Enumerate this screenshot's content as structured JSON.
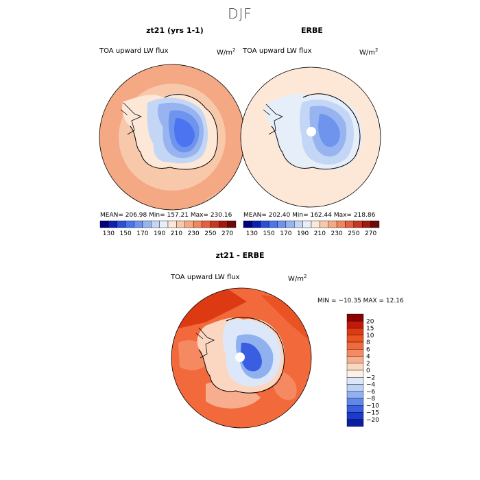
{
  "title": "DJF",
  "panels": [
    {
      "title": "zt21 (yrs 1-1)",
      "varname": "TOA upward LW flux",
      "units": "W/m",
      "units_exp": "2",
      "stats": "MEAN= 206.98   Min= 157.21   Max= 230.16"
    },
    {
      "title": "ERBE",
      "varname": "TOA upward LW flux",
      "units": "W/m",
      "units_exp": "2",
      "stats": "MEAN= 202.40   Min= 162.44   Max= 218.86"
    }
  ],
  "diff": {
    "title": "zt21 - ERBE",
    "varname": "TOA upward LW flux",
    "units": "W/m",
    "units_exp": "2",
    "stats": "MIN = −10.35  MAX =   12.16"
  },
  "chart_data": [
    {
      "type": "heatmap",
      "title": "zt21 (yrs 1-1)",
      "subtitle": "TOA upward LW flux",
      "units": "W/m^2",
      "mean": 206.98,
      "min": 157.21,
      "max": 230.16,
      "colorbar_ticks": [
        "130",
        "150",
        "170",
        "190",
        "210",
        "230",
        "250",
        "270"
      ],
      "colors": [
        "#00007a",
        "#0b1fb0",
        "#2b50d8",
        "#4c74f0",
        "#6f94ee",
        "#97b4f0",
        "#c4d6f5",
        "#e6eef9",
        "#fde8d8",
        "#f7c8aa",
        "#f5a884",
        "#f08660",
        "#e4603e",
        "#c8381f",
        "#a01b0d",
        "#6e0a05"
      ]
    },
    {
      "type": "heatmap",
      "title": "ERBE",
      "subtitle": "TOA upward LW flux",
      "units": "W/m^2",
      "mean": 202.4,
      "min": 162.44,
      "max": 218.86,
      "colorbar_ticks": [
        "130",
        "150",
        "170",
        "190",
        "210",
        "230",
        "250",
        "270"
      ]
    },
    {
      "type": "heatmap",
      "title": "zt21 - ERBE",
      "subtitle": "TOA upward LW flux",
      "units": "W/m^2",
      "min": -10.35,
      "max": 12.16,
      "levels": [
        "20",
        "15",
        "10",
        "8",
        "6",
        "4",
        "2",
        "0",
        "−2",
        "−4",
        "−6",
        "−8",
        "−10",
        "−15",
        "−20"
      ],
      "colors": [
        "#8b0000",
        "#c21a08",
        "#dd3a14",
        "#ea5324",
        "#f26a3c",
        "#f58a62",
        "#f8ae8e",
        "#fbd7c2",
        "#fdf1e6",
        "#dce8fa",
        "#bcd1f5",
        "#8fb1f0",
        "#6286ea",
        "#3a5ee0",
        "#1a3bd0",
        "#0a1ea0"
      ]
    }
  ]
}
